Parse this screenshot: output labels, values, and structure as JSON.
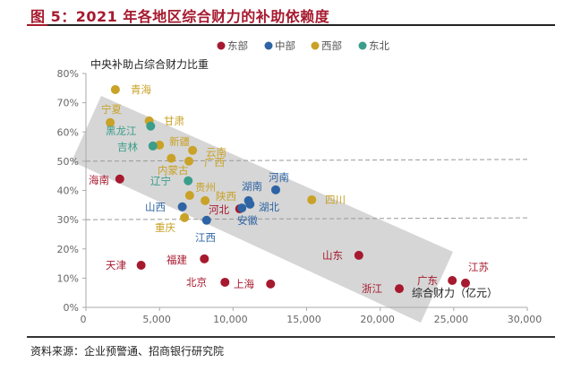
{
  "title": "图 5：2021 年各地区综合财力的补助依赖度",
  "source": "资料来源：企业预警通、招商银行研究院",
  "chart_data": {
    "type": "scatter",
    "title": "",
    "xlabel": "综合财力（亿元）",
    "ylabel": "中央补助占综合财力比重",
    "xlim": [
      0,
      30000
    ],
    "ylim": [
      0,
      80
    ],
    "x_ticks": [
      "0",
      "5,000",
      "10,000",
      "15,000",
      "20,000",
      "25,000",
      "30,000"
    ],
    "y_ticks": [
      "0%",
      "10%",
      "20%",
      "30%",
      "40%",
      "50%",
      "60%",
      "70%",
      "80%"
    ],
    "grid": false,
    "reference_lines_y": [
      50,
      30
    ],
    "legend_position": "top-right",
    "series": [
      {
        "name": "东部",
        "color": "#a6192e",
        "points": [
          {
            "label": "山东",
            "x": 18550,
            "y": 17.8
          },
          {
            "label": "天津",
            "x": 3750,
            "y": 14.4
          },
          {
            "label": "福建",
            "x": 8050,
            "y": 16.6
          },
          {
            "label": "北京",
            "x": 9450,
            "y": 8.6
          },
          {
            "label": "上海",
            "x": 12550,
            "y": 8.0
          },
          {
            "label": "浙江",
            "x": 21300,
            "y": 6.4
          },
          {
            "label": "广东",
            "x": 24900,
            "y": 9.2
          },
          {
            "label": "江苏",
            "x": 25800,
            "y": 8.3
          },
          {
            "label": "河北",
            "x": 10450,
            "y": 33.7
          },
          {
            "label": "海南",
            "x": 2300,
            "y": 43.9
          }
        ]
      },
      {
        "name": "中部",
        "color": "#2e64a4",
        "points": [
          {
            "label": "山西",
            "x": 6550,
            "y": 34.4
          },
          {
            "label": "江西",
            "x": 8200,
            "y": 29.8
          },
          {
            "label": "安徽",
            "x": 10600,
            "y": 34.0
          },
          {
            "label": "湖南",
            "x": 11050,
            "y": 36.5
          },
          {
            "label": "湖北",
            "x": 11150,
            "y": 35.3
          },
          {
            "label": "河南",
            "x": 12900,
            "y": 40.2
          }
        ]
      },
      {
        "name": "西部",
        "color": "#c9a227",
        "points": [
          {
            "label": "青海",
            "x": 2000,
            "y": 74.5
          },
          {
            "label": "宁夏",
            "x": 1650,
            "y": 63.2
          },
          {
            "label": "甘肃",
            "x": 4300,
            "y": 63.8
          },
          {
            "label": "新疆",
            "x": 5000,
            "y": 55.5
          },
          {
            "label": "云南",
            "x": 7250,
            "y": 53.7
          },
          {
            "label": "内蒙古",
            "x": 5800,
            "y": 51.0
          },
          {
            "label": "广西",
            "x": 7000,
            "y": 50.0
          },
          {
            "label": "贵州",
            "x": 7050,
            "y": 38.3
          },
          {
            "label": "陕西",
            "x": 8100,
            "y": 36.5
          },
          {
            "label": "重庆",
            "x": 6700,
            "y": 30.7
          },
          {
            "label": "四川",
            "x": 15350,
            "y": 36.8
          }
        ]
      },
      {
        "name": "东北",
        "color": "#3a9e8a",
        "points": [
          {
            "label": "黑龙江",
            "x": 4400,
            "y": 62.0
          },
          {
            "label": "吉林",
            "x": 4550,
            "y": 55.2
          },
          {
            "label": "辽宁",
            "x": 6950,
            "y": 43.3
          }
        ]
      }
    ]
  }
}
